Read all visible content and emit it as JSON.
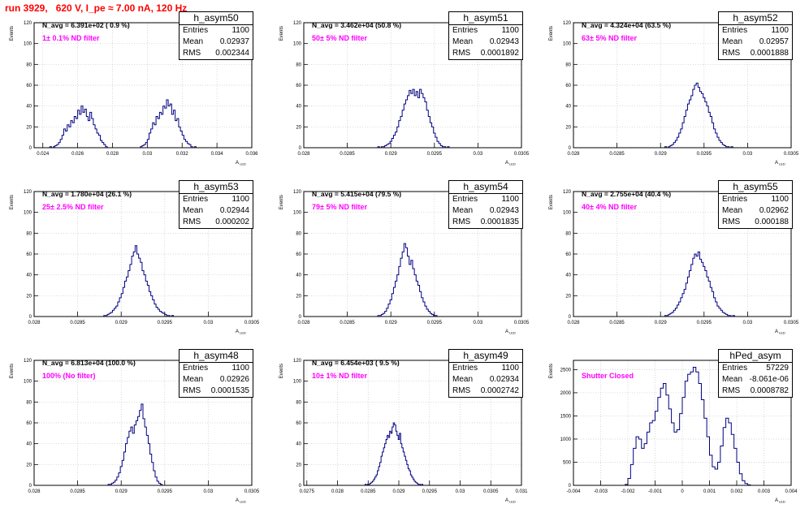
{
  "title": "run 3929,   620 V, I_pe ≈ 7.00 nA, 120 Hz",
  "xlabel": "A",
  "xlabel_sub": "LED",
  "ylabel": "Events",
  "colors": {
    "title": "#ff0000",
    "hist": "#000080",
    "filter_text": "#ff00ff",
    "grid": "#c8c8c8"
  },
  "chart_data": [
    {
      "type": "bar",
      "name": "h_asym50",
      "entries": "1100",
      "mean": "0.02937",
      "rms": "0.002344",
      "n_avg": "N_avg = 6.391e+02 ( 0.9 %)",
      "filter": "1± 0.1% ND filter",
      "xlim": [
        0.0235,
        0.036
      ],
      "ylim": [
        0,
        120
      ],
      "xticks": [
        0.024,
        0.026,
        0.028,
        0.03,
        0.032,
        0.034,
        0.036
      ],
      "xtick_labels": [
        "0.024",
        "0.026",
        "0.028",
        "0.03",
        "0.032",
        "0.034",
        "0.036"
      ],
      "yticks": [
        0,
        20,
        40,
        60,
        80,
        100,
        120
      ],
      "x_start": 0.0244,
      "bin_width": 0.0001,
      "values": [
        1,
        0,
        1,
        2,
        3,
        5,
        8,
        12,
        18,
        16,
        22,
        20,
        26,
        24,
        30,
        28,
        36,
        32,
        40,
        34,
        37,
        30,
        26,
        34,
        28,
        22,
        18,
        14,
        12,
        7,
        5,
        3,
        1,
        0,
        0,
        0,
        0,
        0,
        0,
        0,
        0,
        0,
        0,
        0,
        0,
        0,
        0,
        0,
        0,
        0,
        0,
        0,
        1,
        2,
        3,
        5,
        8,
        14,
        18,
        24,
        22,
        30,
        28,
        34,
        32,
        40,
        38,
        46,
        40,
        42,
        32,
        36,
        26,
        28,
        20,
        16,
        12,
        8,
        6,
        4,
        3,
        1,
        0,
        1
      ]
    },
    {
      "type": "bar",
      "name": "h_asym51",
      "entries": "1100",
      "mean": "0.02943",
      "rms": "0.0001892",
      "n_avg": "N_avg = 3.462e+04 (50.8 %)",
      "filter": "50± 5% ND filter",
      "xlim": [
        0.028,
        0.0305
      ],
      "ylim": [
        0,
        120
      ],
      "xticks": [
        0.028,
        0.0285,
        0.029,
        0.0295,
        0.03,
        0.0305
      ],
      "xtick_labels": [
        "0.028",
        "0.0285",
        "0.029",
        "0.0295",
        "0.03",
        "0.0305"
      ],
      "yticks": [
        0,
        20,
        40,
        60,
        80,
        100,
        120
      ],
      "x_start": 0.02885,
      "bin_width": 2e-05,
      "values": [
        1,
        0,
        1,
        1,
        2,
        3,
        4,
        6,
        9,
        12,
        15,
        20,
        26,
        30,
        36,
        42,
        46,
        50,
        55,
        52,
        56,
        50,
        54,
        48,
        56,
        52,
        48,
        44,
        36,
        30,
        24,
        20,
        14,
        10,
        6,
        4,
        2,
        1,
        1,
        0,
        1
      ]
    },
    {
      "type": "bar",
      "name": "h_asym52",
      "entries": "1100",
      "mean": "0.02957",
      "rms": "0.0001888",
      "n_avg": "N_avg = 4.324e+04 (63.5 %)",
      "filter": "63± 5% ND filter",
      "xlim": [
        0.028,
        0.0305
      ],
      "ylim": [
        0,
        120
      ],
      "xticks": [
        0.028,
        0.0285,
        0.029,
        0.0295,
        0.03,
        0.0305
      ],
      "xtick_labels": [
        "0.028",
        "0.0285",
        "0.029",
        "0.0295",
        "0.03",
        "0.0305"
      ],
      "yticks": [
        0,
        20,
        40,
        60,
        80,
        100,
        120
      ],
      "x_start": 0.02905,
      "bin_width": 2e-05,
      "values": [
        1,
        0,
        1,
        2,
        3,
        5,
        7,
        10,
        14,
        18,
        24,
        30,
        36,
        42,
        46,
        50,
        56,
        60,
        62,
        58,
        54,
        52,
        48,
        44,
        40,
        34,
        30,
        24,
        18,
        14,
        10,
        7,
        5,
        3,
        2,
        1,
        1,
        0,
        1
      ]
    },
    {
      "type": "bar",
      "name": "h_asym53",
      "entries": "1100",
      "mean": "0.02944",
      "rms": "0.000202",
      "n_avg": "N_avg = 1.780e+04 (26.1 %)",
      "filter": "25± 2.5% ND filter",
      "xlim": [
        0.028,
        0.0305
      ],
      "ylim": [
        0,
        120
      ],
      "xticks": [
        0.028,
        0.0285,
        0.029,
        0.0295,
        0.03,
        0.0305
      ],
      "xtick_labels": [
        "0.028",
        "0.0285",
        "0.029",
        "0.0295",
        "0.03",
        "0.0305"
      ],
      "yticks": [
        0,
        20,
        40,
        60,
        80,
        100,
        120
      ],
      "x_start": 0.0288,
      "bin_width": 2e-05,
      "values": [
        1,
        1,
        2,
        3,
        4,
        6,
        8,
        10,
        14,
        18,
        22,
        28,
        34,
        38,
        44,
        50,
        58,
        62,
        68,
        60,
        56,
        52,
        44,
        40,
        34,
        30,
        24,
        20,
        16,
        12,
        9,
        7,
        5,
        4,
        3,
        2,
        1,
        1,
        0,
        1
      ]
    },
    {
      "type": "bar",
      "name": "h_asym54",
      "entries": "1100",
      "mean": "0.02943",
      "rms": "0.0001835",
      "n_avg": "N_avg = 5.415e+04 (79.5 %)",
      "filter": "79± 5% ND filter",
      "xlim": [
        0.028,
        0.0305
      ],
      "ylim": [
        0,
        120
      ],
      "xticks": [
        0.028,
        0.0285,
        0.029,
        0.0295,
        0.03,
        0.0305
      ],
      "xtick_labels": [
        "0.028",
        "0.0285",
        "0.029",
        "0.0295",
        "0.03",
        "0.0305"
      ],
      "yticks": [
        0,
        20,
        40,
        60,
        80,
        100,
        120
      ],
      "x_start": 0.02885,
      "bin_width": 2e-05,
      "values": [
        1,
        1,
        2,
        3,
        5,
        8,
        12,
        16,
        22,
        28,
        34,
        40,
        48,
        56,
        62,
        70,
        66,
        58,
        50,
        54,
        46,
        40,
        34,
        30,
        24,
        18,
        14,
        10,
        7,
        5,
        3,
        2,
        1,
        1
      ]
    },
    {
      "type": "bar",
      "name": "h_asym55",
      "entries": "1100",
      "mean": "0.02962",
      "rms": "0.000188",
      "n_avg": "N_avg = 2.755e+04 (40.4 %)",
      "filter": "40± 4% ND filter",
      "xlim": [
        0.028,
        0.0305
      ],
      "ylim": [
        0,
        120
      ],
      "xticks": [
        0.028,
        0.0285,
        0.029,
        0.0295,
        0.03,
        0.0305
      ],
      "xtick_labels": [
        "0.028",
        "0.0285",
        "0.029",
        "0.0295",
        "0.03",
        "0.0305"
      ],
      "yticks": [
        0,
        20,
        40,
        60,
        80,
        100,
        120
      ],
      "x_start": 0.02905,
      "bin_width": 2e-05,
      "values": [
        1,
        1,
        2,
        3,
        4,
        6,
        8,
        11,
        14,
        18,
        22,
        26,
        32,
        38,
        44,
        50,
        56,
        60,
        58,
        62,
        55,
        52,
        48,
        44,
        38,
        34,
        28,
        24,
        18,
        14,
        10,
        8,
        6,
        4,
        3,
        2,
        1,
        1,
        0,
        1
      ]
    },
    {
      "type": "bar",
      "name": "h_asym48",
      "entries": "1100",
      "mean": "0.02926",
      "rms": "0.0001535",
      "n_avg": "N_avg = 6.813e+04 (100.0 %)",
      "filter": "100% (No filter)",
      "xlim": [
        0.028,
        0.0305
      ],
      "ylim": [
        0,
        120
      ],
      "xticks": [
        0.028,
        0.0285,
        0.029,
        0.0295,
        0.03,
        0.0305
      ],
      "xtick_labels": [
        "0.028",
        "0.0285",
        "0.029",
        "0.0295",
        "0.03",
        "0.0305"
      ],
      "yticks": [
        0,
        20,
        40,
        60,
        80,
        100,
        120
      ],
      "x_start": 0.02885,
      "bin_width": 2e-05,
      "values": [
        1,
        1,
        2,
        3,
        5,
        8,
        12,
        18,
        24,
        32,
        40,
        46,
        52,
        56,
        50,
        58,
        62,
        66,
        72,
        78,
        64,
        56,
        48,
        40,
        30,
        22,
        14,
        8,
        4,
        2,
        1
      ]
    },
    {
      "type": "bar",
      "name": "h_asym49",
      "entries": "1100",
      "mean": "0.02934",
      "rms": "0.0002742",
      "n_avg": "N_avg = 6.454e+03 ( 9.5 %)",
      "filter": "10± 1% ND filter",
      "xlim": [
        0.02745,
        0.031
      ],
      "ylim": [
        0,
        120
      ],
      "xticks": [
        0.0275,
        0.028,
        0.0285,
        0.029,
        0.0295,
        0.03,
        0.0305,
        0.031
      ],
      "xtick_labels": [
        "0.0275",
        "0.028",
        "0.0285",
        "0.029",
        "0.0295",
        "0.03",
        "0.0305",
        "0.031"
      ],
      "yticks": [
        0,
        20,
        40,
        60,
        80,
        100,
        120
      ],
      "x_start": 0.02845,
      "bin_width": 2e-05,
      "values": [
        1,
        0,
        1,
        1,
        2,
        3,
        4,
        6,
        8,
        10,
        14,
        18,
        22,
        28,
        32,
        36,
        40,
        44,
        48,
        46,
        52,
        50,
        56,
        60,
        58,
        52,
        48,
        44,
        50,
        40,
        36,
        32,
        28,
        24,
        20,
        16,
        14,
        10,
        8,
        6,
        4,
        3,
        2,
        1,
        1,
        0,
        1
      ]
    },
    {
      "type": "bar",
      "name": "hPed_asym",
      "entries": "57229",
      "mean": "-8.061e-06",
      "rms": "0.0008782",
      "n_avg": "",
      "filter": "Shutter Closed",
      "xlim": [
        -0.004,
        0.004
      ],
      "ylim": [
        0,
        2700
      ],
      "xticks": [
        -0.004,
        -0.003,
        -0.002,
        -0.001,
        0,
        0.001,
        0.002,
        0.003,
        0.004
      ],
      "xtick_labels": [
        "-0.004",
        "-0.003",
        "-0.002",
        "-0.001",
        "0",
        "0.001",
        "0.002",
        "0.003",
        "0.004"
      ],
      "yticks": [
        0,
        500,
        1000,
        1500,
        2000,
        2500
      ],
      "x_start": -0.0021,
      "bin_width": 0.0001,
      "values": [
        20,
        150,
        450,
        800,
        1050,
        1000,
        800,
        900,
        1150,
        1350,
        1400,
        1600,
        1900,
        2100,
        2200,
        1950,
        1650,
        1350,
        1150,
        1200,
        1550,
        1900,
        2250,
        2400,
        2450,
        2550,
        2450,
        2200,
        1850,
        1450,
        1050,
        650,
        400,
        350,
        500,
        850,
        1250,
        1450,
        1350,
        1100,
        800,
        500,
        250,
        100,
        40,
        10
      ]
    }
  ]
}
